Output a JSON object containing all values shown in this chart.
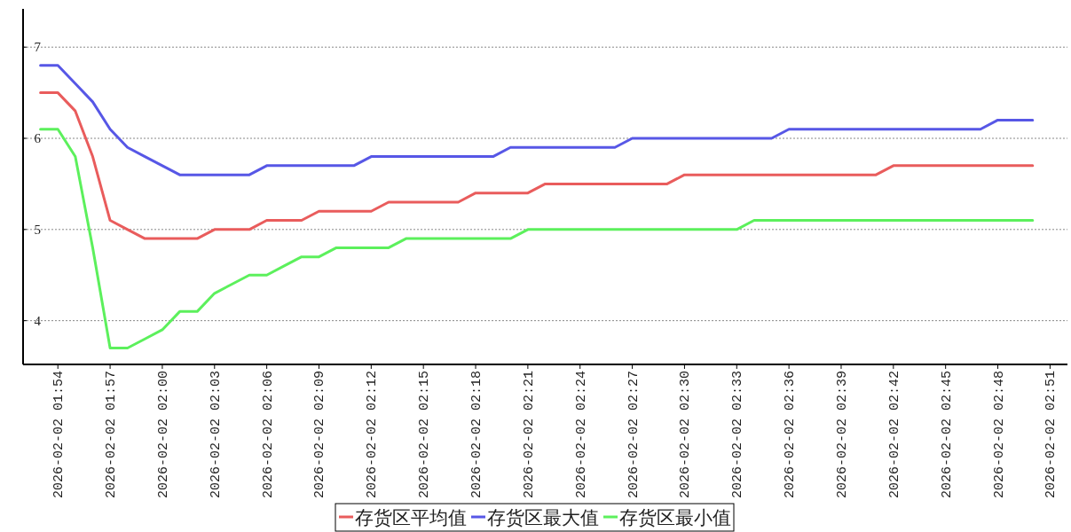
{
  "chart_data": {
    "type": "line",
    "x": [
      "2026-02-02T01:53",
      "2026-02-02T01:54",
      "2026-02-02T01:55",
      "2026-02-02T01:56",
      "2026-02-02T01:57",
      "2026-02-02T01:58",
      "2026-02-02T01:59",
      "2026-02-02T02:00",
      "2026-02-02T02:01",
      "2026-02-02T02:02",
      "2026-02-02T02:03",
      "2026-02-02T02:04",
      "2026-02-02T02:05",
      "2026-02-02T02:06",
      "2026-02-02T02:07",
      "2026-02-02T02:08",
      "2026-02-02T02:09",
      "2026-02-02T02:10",
      "2026-02-02T02:11",
      "2026-02-02T02:12",
      "2026-02-02T02:13",
      "2026-02-02T02:14",
      "2026-02-02T02:15",
      "2026-02-02T02:16",
      "2026-02-02T02:17",
      "2026-02-02T02:18",
      "2026-02-02T02:19",
      "2026-02-02T02:20",
      "2026-02-02T02:21",
      "2026-02-02T02:22",
      "2026-02-02T02:23",
      "2026-02-02T02:24",
      "2026-02-02T02:25",
      "2026-02-02T02:26",
      "2026-02-02T02:27",
      "2026-02-02T02:28",
      "2026-02-02T02:29",
      "2026-02-02T02:30",
      "2026-02-02T02:31",
      "2026-02-02T02:32",
      "2026-02-02T02:33",
      "2026-02-02T02:34",
      "2026-02-02T02:35",
      "2026-02-02T02:36",
      "2026-02-02T02:37",
      "2026-02-02T02:38",
      "2026-02-02T02:39",
      "2026-02-02T02:40",
      "2026-02-02T02:41",
      "2026-02-02T02:42",
      "2026-02-02T02:43",
      "2026-02-02T02:44",
      "2026-02-02T02:45",
      "2026-02-02T02:46",
      "2026-02-02T02:47",
      "2026-02-02T02:48",
      "2026-02-02T02:49",
      "2026-02-02T02:50"
    ],
    "series": [
      {
        "name": "存货区平均值",
        "color": "#e95c5c",
        "values": [
          6.5,
          6.5,
          6.3,
          5.8,
          5.1,
          5.0,
          4.9,
          4.9,
          4.9,
          4.9,
          5.0,
          5.0,
          5.0,
          5.1,
          5.1,
          5.1,
          5.2,
          5.2,
          5.2,
          5.2,
          5.3,
          5.3,
          5.3,
          5.3,
          5.3,
          5.4,
          5.4,
          5.4,
          5.4,
          5.5,
          5.5,
          5.5,
          5.5,
          5.5,
          5.5,
          5.5,
          5.5,
          5.6,
          5.6,
          5.6,
          5.6,
          5.6,
          5.6,
          5.6,
          5.6,
          5.6,
          5.6,
          5.6,
          5.6,
          5.7,
          5.7,
          5.7,
          5.7,
          5.7,
          5.7,
          5.7,
          5.7,
          5.7
        ]
      },
      {
        "name": "存货区最大值",
        "color": "#5757e6",
        "values": [
          6.8,
          6.8,
          6.6,
          6.4,
          6.1,
          5.9,
          5.8,
          5.7,
          5.6,
          5.6,
          5.6,
          5.6,
          5.6,
          5.7,
          5.7,
          5.7,
          5.7,
          5.7,
          5.7,
          5.8,
          5.8,
          5.8,
          5.8,
          5.8,
          5.8,
          5.8,
          5.8,
          5.9,
          5.9,
          5.9,
          5.9,
          5.9,
          5.9,
          5.9,
          6.0,
          6.0,
          6.0,
          6.0,
          6.0,
          6.0,
          6.0,
          6.0,
          6.0,
          6.1,
          6.1,
          6.1,
          6.1,
          6.1,
          6.1,
          6.1,
          6.1,
          6.1,
          6.1,
          6.1,
          6.1,
          6.2,
          6.2,
          6.2
        ]
      },
      {
        "name": "存货区最小值",
        "color": "#5cf05c",
        "values": [
          6.1,
          6.1,
          5.8,
          4.8,
          3.7,
          3.7,
          3.8,
          3.9,
          4.1,
          4.1,
          4.3,
          4.4,
          4.5,
          4.5,
          4.6,
          4.7,
          4.7,
          4.8,
          4.8,
          4.8,
          4.8,
          4.9,
          4.9,
          4.9,
          4.9,
          4.9,
          4.9,
          4.9,
          5.0,
          5.0,
          5.0,
          5.0,
          5.0,
          5.0,
          5.0,
          5.0,
          5.0,
          5.0,
          5.0,
          5.0,
          5.0,
          5.1,
          5.1,
          5.1,
          5.1,
          5.1,
          5.1,
          5.1,
          5.1,
          5.1,
          5.1,
          5.1,
          5.1,
          5.1,
          5.1,
          5.1,
          5.1,
          5.1
        ]
      }
    ],
    "xlim": [
      "2026-02-02T01:52",
      "2026-02-02T02:52"
    ],
    "xticks": [
      {
        "value": "2026-02-02T01:54",
        "label": "2026-02-02 01:54"
      },
      {
        "value": "2026-02-02T01:57",
        "label": "2026-02-02 01:57"
      },
      {
        "value": "2026-02-02T02:00",
        "label": "2026-02-02 02:00"
      },
      {
        "value": "2026-02-02T02:03",
        "label": "2026-02-02 02:03"
      },
      {
        "value": "2026-02-02T02:06",
        "label": "2026-02-02 02:06"
      },
      {
        "value": "2026-02-02T02:09",
        "label": "2026-02-02 02:09"
      },
      {
        "value": "2026-02-02T02:12",
        "label": "2026-02-02 02:12"
      },
      {
        "value": "2026-02-02T02:15",
        "label": "2026-02-02 02:15"
      },
      {
        "value": "2026-02-02T02:18",
        "label": "2026-02-02 02:18"
      },
      {
        "value": "2026-02-02T02:21",
        "label": "2026-02-02 02:21"
      },
      {
        "value": "2026-02-02T02:24",
        "label": "2026-02-02 02:24"
      },
      {
        "value": "2026-02-02T02:27",
        "label": "2026-02-02 02:27"
      },
      {
        "value": "2026-02-02T02:30",
        "label": "2026-02-02 02:30"
      },
      {
        "value": "2026-02-02T02:33",
        "label": "2026-02-02 02:33"
      },
      {
        "value": "2026-02-02T02:36",
        "label": "2026-02-02 02:36"
      },
      {
        "value": "2026-02-02T02:39",
        "label": "2026-02-02 02:39"
      },
      {
        "value": "2026-02-02T02:42",
        "label": "2026-02-02 02:42"
      },
      {
        "value": "2026-02-02T02:45",
        "label": "2026-02-02 02:45"
      },
      {
        "value": "2026-02-02T02:48",
        "label": "2026-02-02 02:48"
      },
      {
        "value": "2026-02-02T02:51",
        "label": "2026-02-02 02:51"
      }
    ],
    "ylim": [
      3.52,
      7.42
    ],
    "yticks": [
      4,
      5,
      6,
      7
    ],
    "grid": "y",
    "legend": "bottom",
    "marker": "none",
    "line_style": "solid"
  }
}
